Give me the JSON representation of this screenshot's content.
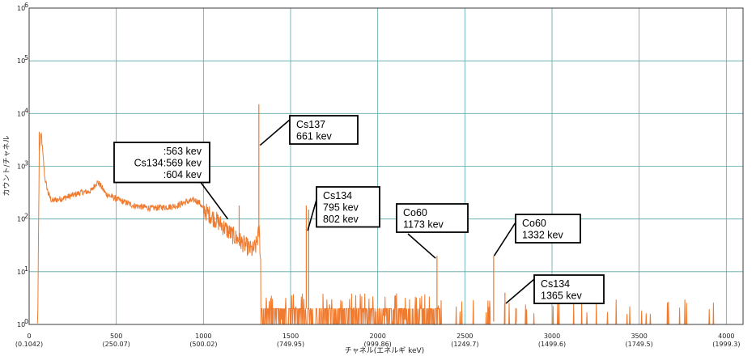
{
  "chart_data": {
    "type": "line",
    "xlabel": "チャネル(エネルギ keV)",
    "ylabel": "カウント/チャネル",
    "xlim": [
      0,
      4096
    ],
    "ylim": [
      1,
      1000000
    ],
    "log_y": true,
    "grid": true,
    "x_ticks": [
      {
        "v": 0,
        "label": "0",
        "sub": "(0.1042)"
      },
      {
        "v": 500,
        "label": "500",
        "sub": "(250.07)"
      },
      {
        "v": 1000,
        "label": "1000",
        "sub": "(500.02)"
      },
      {
        "v": 1500,
        "label": "1500",
        "sub": "(749.95)"
      },
      {
        "v": 2000,
        "label": "2000",
        "sub": "(999.86)"
      },
      {
        "v": 2500,
        "label": "2500",
        "sub": "(1249.7)"
      },
      {
        "v": 3000,
        "label": "3000",
        "sub": "(1499.6)"
      },
      {
        "v": 3500,
        "label": "3500",
        "sub": "(1749.5)"
      },
      {
        "v": 4000,
        "label": "4000",
        "sub": "(1999.3)"
      }
    ],
    "y_ticks": [
      {
        "exp": 0,
        "label": "10",
        "sup": "0"
      },
      {
        "exp": 1,
        "label": "10",
        "sup": "1"
      },
      {
        "exp": 2,
        "label": "10",
        "sup": "2"
      },
      {
        "exp": 3,
        "label": "10",
        "sup": "3"
      },
      {
        "exp": 4,
        "label": "10",
        "sup": "4"
      },
      {
        "exp": 5,
        "label": "10",
        "sup": "5"
      },
      {
        "exp": 6,
        "label": "10",
        "sup": "6"
      }
    ],
    "continuum": [
      [
        50,
        2
      ],
      [
        58,
        2000
      ],
      [
        70,
        4000
      ],
      [
        80,
        1500
      ],
      [
        90,
        600
      ],
      [
        110,
        300
      ],
      [
        130,
        220
      ],
      [
        200,
        250
      ],
      [
        260,
        290
      ],
      [
        300,
        320
      ],
      [
        340,
        330
      ],
      [
        360,
        350
      ],
      [
        380,
        460
      ],
      [
        395,
        500
      ],
      [
        410,
        430
      ],
      [
        440,
        300
      ],
      [
        500,
        240
      ],
      [
        600,
        180
      ],
      [
        700,
        160
      ],
      [
        800,
        170
      ],
      [
        850,
        180
      ],
      [
        900,
        210
      ],
      [
        950,
        230
      ],
      [
        980,
        200
      ],
      [
        1000,
        150
      ],
      [
        1050,
        110
      ],
      [
        1100,
        80
      ],
      [
        1150,
        55
      ],
      [
        1200,
        40
      ],
      [
        1250,
        30
      ],
      [
        1280,
        25
      ],
      [
        1300,
        30
      ],
      [
        1320,
        60
      ],
      [
        1330,
        12
      ],
      [
        1350,
        6
      ],
      [
        1380,
        4
      ],
      [
        1420,
        3
      ],
      [
        1500,
        2
      ],
      [
        1600,
        2
      ],
      [
        2000,
        1.8
      ],
      [
        2340,
        1.8
      ],
      [
        2400,
        1.2
      ],
      [
        2800,
        1.1
      ],
      [
        4096,
        1.05
      ]
    ],
    "peaks": [
      {
        "x": 58,
        "y": 4500
      },
      {
        "x": 1205,
        "y": 180
      },
      {
        "x": 1318,
        "y": 15000
      },
      {
        "x": 1590,
        "y": 180
      },
      {
        "x": 1604,
        "y": 150
      },
      {
        "x": 2340,
        "y": 20
      },
      {
        "x": 2665,
        "y": 20
      },
      {
        "x": 2730,
        "y": 4
      },
      {
        "x": 2795,
        "y": 2
      }
    ],
    "annotations": [
      {
        "lines": [
          ":563 kev",
          "Cs134:569 kev",
          "     :604 kev"
        ],
        "peak_x": 1140,
        "peak_y": 100
      },
      {
        "lines": [
          "Cs137",
          "661 kev"
        ],
        "peak_x": 1325,
        "peak_y": 2500
      },
      {
        "lines": [
          "Cs134",
          "795 kev",
          "802 kev"
        ],
        "peak_x": 1598,
        "peak_y": 60
      },
      {
        "lines": [
          "Co60",
          "1173 kev"
        ],
        "peak_x": 2332,
        "peak_y": 18
      },
      {
        "lines": [
          "Co60",
          "1332 kev"
        ],
        "peak_x": 2668,
        "peak_y": 20
      },
      {
        "lines": [
          "Cs134",
          "1365 kev"
        ],
        "peak_x": 2735,
        "peak_y": 2.5
      }
    ]
  }
}
